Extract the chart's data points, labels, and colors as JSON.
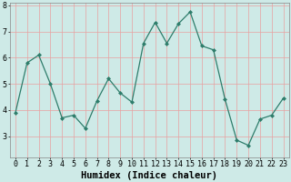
{
  "x": [
    0,
    1,
    2,
    3,
    4,
    5,
    6,
    7,
    8,
    9,
    10,
    11,
    12,
    13,
    14,
    15,
    16,
    17,
    18,
    19,
    20,
    21,
    22,
    23
  ],
  "y": [
    3.9,
    5.8,
    6.1,
    5.0,
    3.7,
    3.8,
    3.3,
    4.35,
    5.2,
    4.65,
    4.3,
    6.55,
    7.35,
    6.55,
    7.3,
    7.75,
    6.45,
    6.3,
    4.4,
    2.85,
    2.65,
    3.65,
    3.8,
    4.45
  ],
  "line_color": "#2e7d6b",
  "marker": "D",
  "marker_size": 2.0,
  "bg_color": "#ceeae7",
  "grid_color": "#e8a0a0",
  "xlabel": "Humidex (Indice chaleur)",
  "xlabel_fontsize": 7.5,
  "ylim": [
    2.2,
    8.1
  ],
  "xlim": [
    -0.5,
    23.5
  ],
  "yticks": [
    3,
    4,
    5,
    6,
    7,
    8
  ],
  "xticks": [
    0,
    1,
    2,
    3,
    4,
    5,
    6,
    7,
    8,
    9,
    10,
    11,
    12,
    13,
    14,
    15,
    16,
    17,
    18,
    19,
    20,
    21,
    22,
    23
  ],
  "tick_fontsize": 6.0,
  "linewidth": 0.9
}
